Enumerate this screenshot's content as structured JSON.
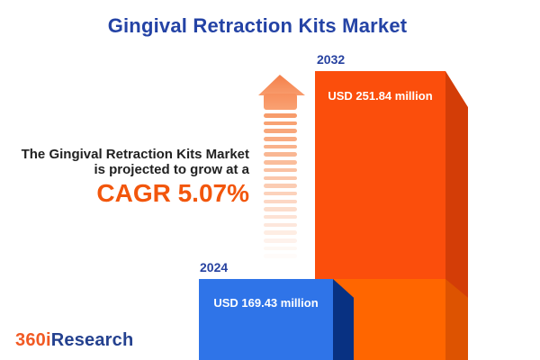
{
  "title": "Gingival Retraction Kits Market",
  "promo": {
    "line1": "The Gingival Retraction Kits Market",
    "line2": "is projected to grow at a",
    "cagr_label": "CAGR 5.07%"
  },
  "chart_data": {
    "type": "bar",
    "title": "Gingival Retraction Kits Market",
    "categories": [
      "2024",
      "2032"
    ],
    "values": [
      169.43,
      251.84
    ],
    "unit": "USD million",
    "value_labels": [
      "USD 169.43 million",
      "USD 251.84 million"
    ],
    "cagr_percent": 5.07,
    "legend_position": "none",
    "grid": false,
    "orientation": "vertical"
  },
  "bars": {
    "b2024": {
      "year": "2024",
      "value_label": "USD 169.43 million",
      "front_color": "#2F74E8",
      "side_color": "#083182"
    },
    "b2032": {
      "year": "2032",
      "value_label": "USD 251.84 million",
      "front_color": "#FB4E0C",
      "side_color": "#D33D07",
      "lower_front_color": "#FF6600",
      "lower_side_color": "#DD5301"
    }
  },
  "arrow": {
    "stripe_count": 19,
    "stripe_color": "#F79763",
    "head_color": "#F58350"
  },
  "colors": {
    "title_blue": "#2443A5",
    "year_label_blue": "#2742A0",
    "cagr_orange": "#F2560C",
    "promo_text": "#212121",
    "background": "#FFFFFF"
  },
  "logo": {
    "part1": "360i",
    "part2": "Research",
    "part1_color": "#F15A24",
    "part2_color": "#24418F"
  }
}
